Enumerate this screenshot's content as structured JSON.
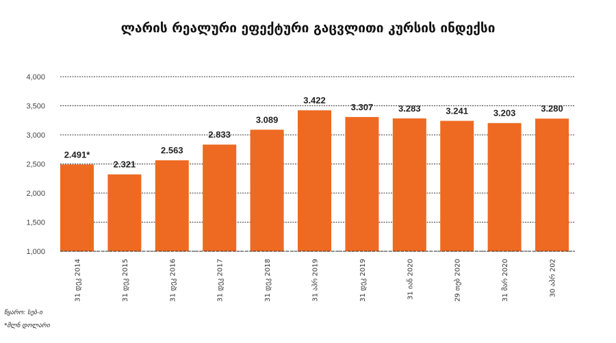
{
  "chart_data": {
    "type": "bar",
    "title": "ლარის რეალური ეფექტური გაცვლითი კურსის ინდექსი",
    "categories": [
      "31 დეკ 2014",
      "31 დეკ 2015",
      "31 დეკ 2016",
      "31 დეკ 2017",
      "31 დეკ 2018",
      "31 აპრ 2019",
      "31 დეკ 2019",
      "31 იან 2020",
      "29 თებ 2020",
      "31 მარ 2020",
      "30 აპრ 202"
    ],
    "values": [
      2.491,
      2.321,
      2.563,
      2.833,
      3.089,
      3.422,
      3.307,
      3.283,
      3.241,
      3.203,
      3.28
    ],
    "data_labels": [
      "2.491*",
      "2.321",
      "2.563",
      "2.833",
      "3.089",
      "3.422",
      "3.307",
      "3.283",
      "3.241",
      "3.203",
      "3.280"
    ],
    "yticks": [
      "1,000",
      "1,500",
      "2,000",
      "2,500",
      "3,000",
      "3,500",
      "4,000"
    ],
    "ylim": [
      1000,
      4000
    ],
    "grid": true,
    "bar_color": "#EE6A22",
    "xlabel": "",
    "ylabel": ""
  },
  "footnotes": {
    "source": "წყარო: სებ-ი",
    "unit": "*მლნ დოლარი"
  }
}
